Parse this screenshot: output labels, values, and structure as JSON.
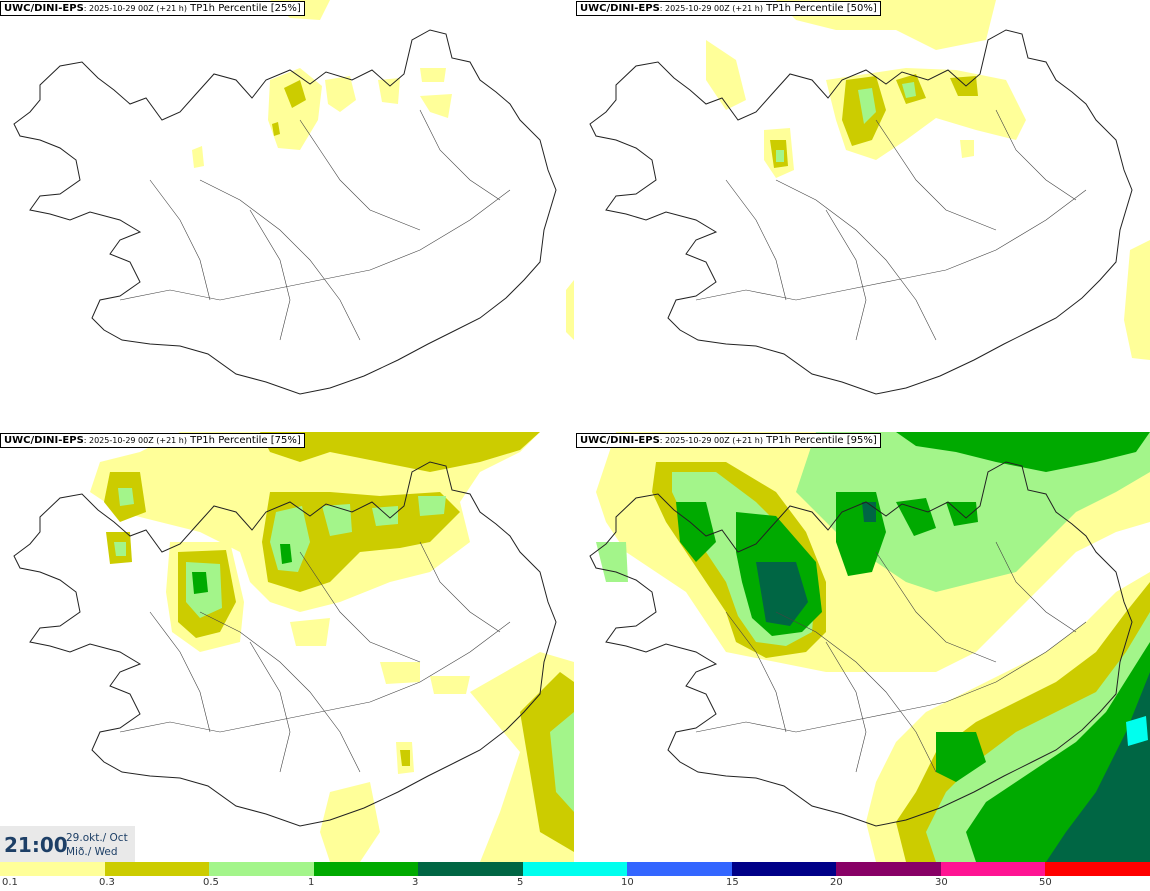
{
  "panels": [
    {
      "id": "p25",
      "model": "UWC/DINI-EPS",
      "info": ": 2025-10-29 00Z (+21 h)",
      "param": "TP1h Percentile [25%]"
    },
    {
      "id": "p50",
      "model": "UWC/DINI-EPS",
      "info": ": 2025-10-29 00Z (+21 h)",
      "param": "TP1h Percentile [50%]"
    },
    {
      "id": "p75",
      "model": "UWC/DINI-EPS",
      "info": ": 2025-10-29 00Z (+21 h)",
      "param": "TP1h Percentile [75%]"
    },
    {
      "id": "p95",
      "model": "UWC/DINI-EPS",
      "info": ": 2025-10-29 00Z (+21 h)",
      "param": "TP1h Percentile [95%]"
    }
  ],
  "valid_time": {
    "time": "21:00",
    "date_line1": "29.okt./ Oct",
    "date_line2": "Mið./ Wed"
  },
  "legend": {
    "colors": [
      "#ffff99",
      "#cccc00",
      "#a3f58a",
      "#00aa00",
      "#006644",
      "#00ffee",
      "#3366ff",
      "#000088",
      "#880066",
      "#ff1493",
      "#ff0000"
    ],
    "labels": [
      "0.1",
      "0.3",
      "0.5",
      "1",
      "3",
      "5",
      "10",
      "15",
      "20",
      "30",
      "50"
    ]
  },
  "colors": {
    "c01": "#ffff99",
    "c03": "#cccc00",
    "c05": "#a3f58a",
    "c1": "#00aa00",
    "c3": "#006644",
    "c5": "#00ffee",
    "coast": "#222222"
  }
}
